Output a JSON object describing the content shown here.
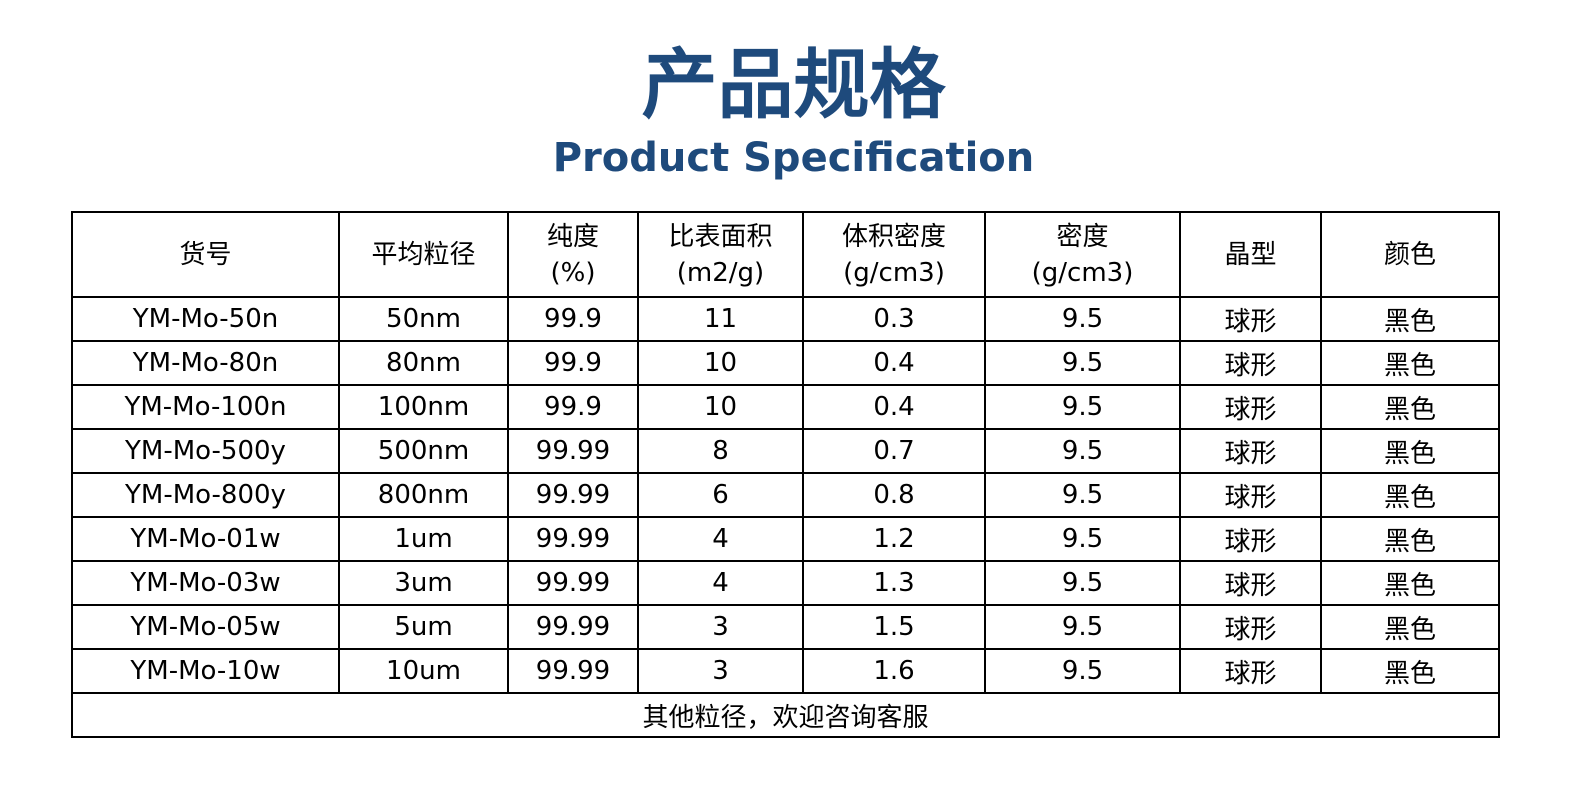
{
  "header": {
    "title": "产品规格",
    "subtitle": "Product Specification"
  },
  "table": {
    "columns": [
      [
        "货号"
      ],
      [
        "平均粒径"
      ],
      [
        "纯度",
        "(%)"
      ],
      [
        "比表面积",
        "(m2/g)"
      ],
      [
        "体积密度",
        "(g/cm3)"
      ],
      [
        "密度",
        "(g/cm3)"
      ],
      [
        "晶型"
      ],
      [
        "颜色"
      ]
    ],
    "rows": [
      [
        "YM-Mo-50n",
        "50nm",
        "99.9",
        "11",
        "0.3",
        "9.5",
        "球形",
        "黑色"
      ],
      [
        "YM-Mo-80n",
        "80nm",
        "99.9",
        "10",
        "0.4",
        "9.5",
        "球形",
        "黑色"
      ],
      [
        "YM-Mo-100n",
        "100nm",
        "99.9",
        "10",
        "0.4",
        "9.5",
        "球形",
        "黑色"
      ],
      [
        "YM-Mo-500y",
        "500nm",
        "99.99",
        "8",
        "0.7",
        "9.5",
        "球形",
        "黑色"
      ],
      [
        "YM-Mo-800y",
        "800nm",
        "99.99",
        "6",
        "0.8",
        "9.5",
        "球形",
        "黑色"
      ],
      [
        "YM-Mo-01w",
        "1um",
        "99.99",
        "4",
        "1.2",
        "9.5",
        "球形",
        "黑色"
      ],
      [
        "YM-Mo-03w",
        "3um",
        "99.99",
        "4",
        "1.3",
        "9.5",
        "球形",
        "黑色"
      ],
      [
        "YM-Mo-05w",
        "5um",
        "99.99",
        "3",
        "1.5",
        "9.5",
        "球形",
        "黑色"
      ],
      [
        "YM-Mo-10w",
        "10um",
        "99.99",
        "3",
        "1.6",
        "9.5",
        "球形",
        "黑色"
      ]
    ],
    "footer": "其他粒径，欢迎咨询客服"
  }
}
